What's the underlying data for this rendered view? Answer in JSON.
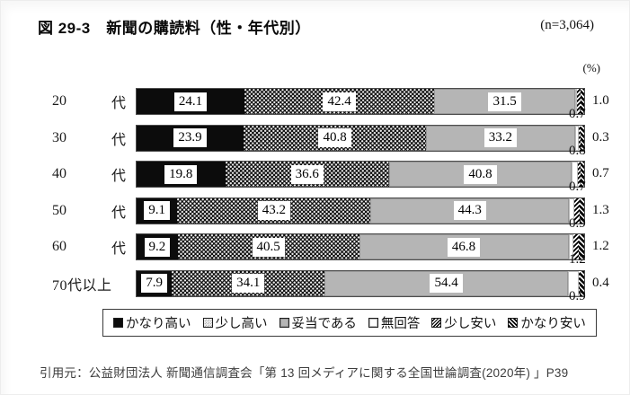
{
  "page": {
    "title": "図 29-3　新聞の購読料（性・年代別）",
    "sample_size": "(n=3,064)",
    "unit_label": "(%)",
    "source": "引用元：公益財団法人 新聞通信調査会「第 13 回メディアに関する全国世論調査(2020年) 」P39"
  },
  "colors": {
    "strong_high": "#0c0c0c",
    "moderate_gray": "#b5b5b5",
    "text": "#111111",
    "source_text": "#3d3d3d"
  },
  "chart_data": {
    "type": "bar",
    "orientation": "horizontal",
    "stacked": true,
    "title": "新聞の購読料（性・年代別）",
    "n": 3064,
    "unit": "%",
    "xlim": [
      0,
      100
    ],
    "legend_position": "bottom",
    "grid": false,
    "categories": [
      "20代",
      "30代",
      "40代",
      "50代",
      "60代",
      "70代以上"
    ],
    "category_label_parts": [
      [
        "20",
        "代"
      ],
      [
        "30",
        "代"
      ],
      [
        "40",
        "代"
      ],
      [
        "50",
        "代"
      ],
      [
        "60",
        "代"
      ],
      [
        "70代以上"
      ]
    ],
    "series": [
      {
        "name": "かなり高い",
        "pattern": "solid-black",
        "values": [
          24.1,
          23.9,
          19.8,
          9.1,
          9.2,
          7.9
        ]
      },
      {
        "name": "少し高い",
        "pattern": "black-dots",
        "values": [
          42.4,
          40.8,
          36.6,
          43.2,
          40.5,
          34.1
        ]
      },
      {
        "name": "妥当である",
        "pattern": "gray",
        "values": [
          31.5,
          33.2,
          40.8,
          44.3,
          46.8,
          54.4
        ]
      },
      {
        "name": "無回答",
        "pattern": "white",
        "values": [
          0.3,
          1.0,
          1.4,
          1.2,
          1.1,
          2.3
        ]
      },
      {
        "name": "少し安い",
        "pattern": "light-hatch",
        "values": [
          1.0,
          0.3,
          0.7,
          1.3,
          1.2,
          0.4
        ]
      },
      {
        "name": "かなり安い",
        "pattern": "dark-hatch",
        "values": [
          0.7,
          0.8,
          0.7,
          0.9,
          1.2,
          0.9
        ]
      }
    ],
    "value_label_rules": "series 0-2 labeled inside segments; 少し安い labeled right of bar; かなり安い labeled below bar end; 無回答 unlabeled"
  }
}
